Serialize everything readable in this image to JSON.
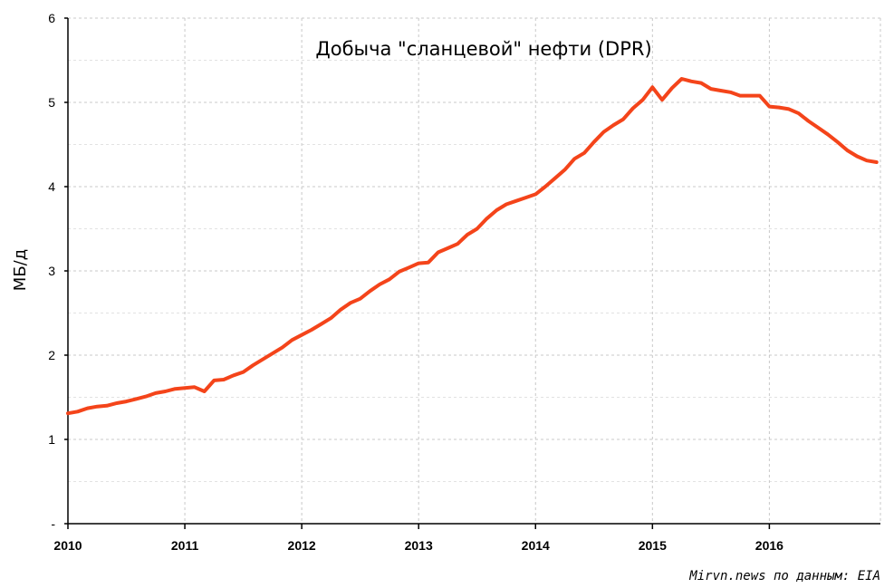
{
  "chart_data": {
    "type": "line",
    "title": "Добыча \"сланцевой\" нефти (DPR)",
    "ylabel": "МБ/д",
    "xlabel": "",
    "source": "Mirvn.news по данным: EIA",
    "ylim": [
      0,
      6
    ],
    "xlim": [
      2010,
      2016.95
    ],
    "yticks": [
      "-",
      "1",
      "2",
      "3",
      "4",
      "5",
      "6"
    ],
    "xticks": [
      "2010",
      "2011",
      "2012",
      "2013",
      "2014",
      "2015",
      "2016"
    ],
    "grid": true,
    "line_color": "#f4441a",
    "series": [
      {
        "x": [
          2010.0,
          2010.083,
          2010.167,
          2010.25,
          2010.333,
          2010.417,
          2010.5,
          2010.583,
          2010.667,
          2010.75,
          2010.833,
          2010.917,
          2011.0,
          2011.083,
          2011.167,
          2011.25,
          2011.333,
          2011.417,
          2011.5,
          2011.583,
          2011.667,
          2011.75,
          2011.833,
          2011.917,
          2012.0,
          2012.083,
          2012.167,
          2012.25,
          2012.333,
          2012.417,
          2012.5,
          2012.583,
          2012.667,
          2012.75,
          2012.833,
          2012.917,
          2013.0,
          2013.083,
          2013.167,
          2013.25,
          2013.333,
          2013.417,
          2013.5,
          2013.583,
          2013.667,
          2013.75,
          2013.833,
          2013.917,
          2014.0,
          2014.083,
          2014.167,
          2014.25,
          2014.333,
          2014.417,
          2014.5,
          2014.583,
          2014.667,
          2014.75,
          2014.833,
          2014.917,
          2015.0,
          2015.083,
          2015.167,
          2015.25,
          2015.333,
          2015.417,
          2015.5,
          2015.583,
          2015.667,
          2015.75,
          2015.833,
          2015.917,
          2016.0,
          2016.083,
          2016.167,
          2016.25,
          2016.333,
          2016.417,
          2016.5,
          2016.583,
          2016.667,
          2016.75,
          2016.833,
          2016.917
        ],
        "values": [
          1.31,
          1.33,
          1.37,
          1.39,
          1.4,
          1.43,
          1.45,
          1.48,
          1.51,
          1.55,
          1.57,
          1.6,
          1.61,
          1.62,
          1.57,
          1.7,
          1.71,
          1.76,
          1.8,
          1.88,
          1.95,
          2.02,
          2.09,
          2.18,
          2.24,
          2.3,
          2.37,
          2.44,
          2.54,
          2.62,
          2.67,
          2.76,
          2.84,
          2.9,
          2.99,
          3.04,
          3.09,
          3.1,
          3.22,
          3.27,
          3.32,
          3.43,
          3.5,
          3.62,
          3.72,
          3.79,
          3.83,
          3.87,
          3.91,
          4.0,
          4.1,
          4.2,
          4.33,
          4.4,
          4.53,
          4.65,
          4.73,
          4.8,
          4.93,
          5.03,
          5.18,
          5.03,
          5.17,
          5.28,
          5.25,
          5.23,
          5.16,
          5.14,
          5.12,
          5.08,
          5.08,
          5.08,
          4.95,
          4.94,
          4.92,
          4.87,
          4.78,
          4.7,
          4.62,
          4.53,
          4.43,
          4.36,
          4.31,
          4.29
        ]
      }
    ]
  }
}
